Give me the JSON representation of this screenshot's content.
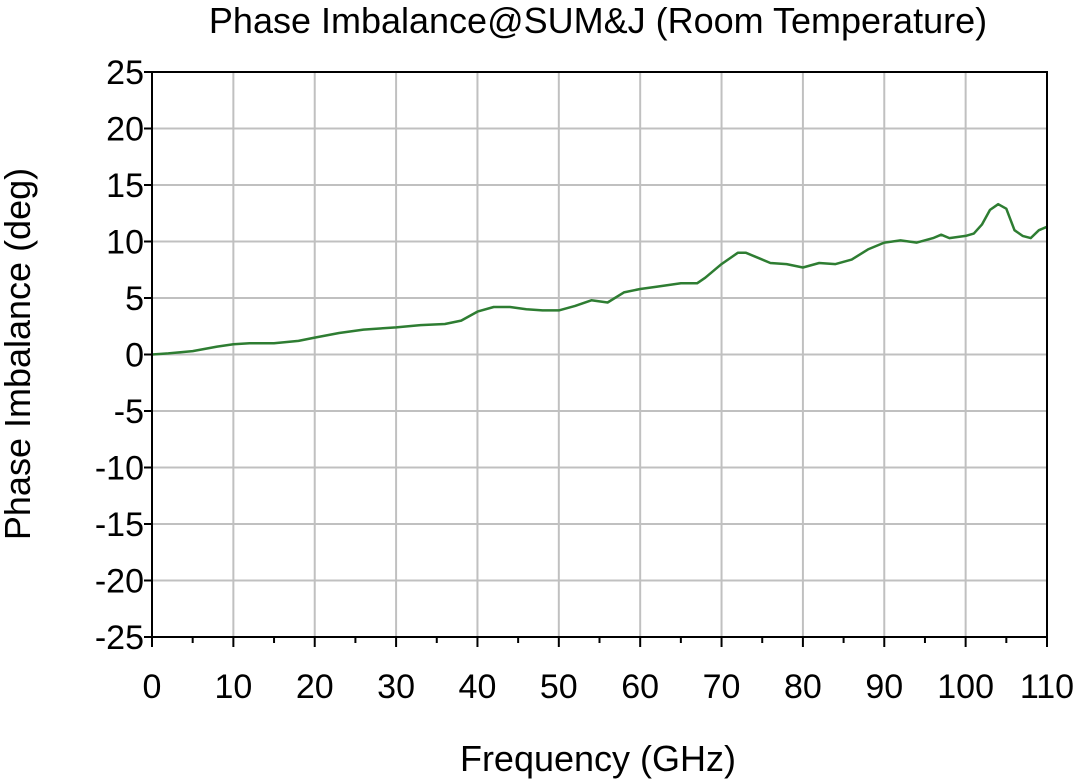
{
  "chart_data": {
    "type": "line",
    "title": "Phase Imbalance@SUM&J (Room Temperature)",
    "xlabel": "Frequency (GHz)",
    "ylabel": "Phase Imbalance (deg)",
    "xlim": [
      0,
      110
    ],
    "ylim": [
      -25,
      25
    ],
    "xticks": [
      0,
      10,
      20,
      30,
      40,
      50,
      60,
      70,
      80,
      90,
      100,
      110
    ],
    "yticks": [
      -25,
      -20,
      -15,
      -10,
      -5,
      0,
      5,
      10,
      15,
      20,
      25
    ],
    "x_minor_step": 5,
    "grid": true,
    "series": [
      {
        "color": "#2e7d32",
        "x": [
          0,
          2,
          5,
          8,
          10,
          12,
          15,
          18,
          20,
          23,
          26,
          28,
          30,
          33,
          36,
          38,
          40,
          42,
          44,
          46,
          48,
          50,
          52,
          54,
          56,
          58,
          60,
          62,
          65,
          67,
          68,
          70,
          72,
          73,
          74,
          76,
          78,
          80,
          82,
          84,
          86,
          88,
          90,
          92,
          94,
          96,
          97,
          98,
          100,
          101,
          102,
          103,
          104,
          105,
          106,
          107,
          108,
          109,
          110
        ],
        "values": [
          0.0,
          0.1,
          0.3,
          0.7,
          0.9,
          1.0,
          1.0,
          1.2,
          1.5,
          1.9,
          2.2,
          2.3,
          2.4,
          2.6,
          2.7,
          3.0,
          3.8,
          4.2,
          4.2,
          4.0,
          3.9,
          3.9,
          4.3,
          4.8,
          4.6,
          5.5,
          5.8,
          6.0,
          6.3,
          6.3,
          6.8,
          8.0,
          9.0,
          9.0,
          8.7,
          8.1,
          8.0,
          7.7,
          8.1,
          8.0,
          8.4,
          9.3,
          9.9,
          10.1,
          9.9,
          10.3,
          10.6,
          10.3,
          10.5,
          10.7,
          11.5,
          12.8,
          13.3,
          12.9,
          11.0,
          10.5,
          10.3,
          11.0,
          11.3
        ]
      }
    ]
  }
}
